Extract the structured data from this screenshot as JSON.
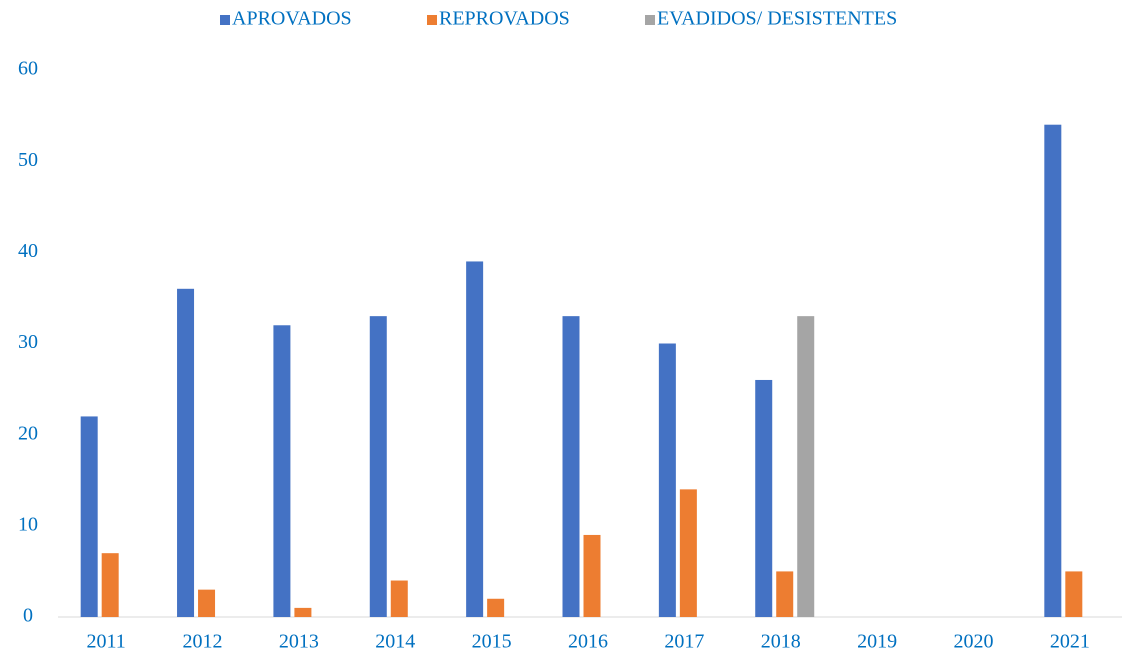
{
  "chart_data": {
    "type": "bar",
    "categories": [
      "2011",
      "2012",
      "2013",
      "2014",
      "2015",
      "2016",
      "2017",
      "2018",
      "2019",
      "2020",
      "2021"
    ],
    "series": [
      {
        "name": "APROVADOS",
        "color": "#4472c4",
        "values": [
          22,
          36,
          32,
          33,
          39,
          33,
          30,
          26,
          null,
          null,
          54
        ]
      },
      {
        "name": "REPROVADOS",
        "color": "#ed7d31",
        "values": [
          7,
          3,
          1,
          4,
          2,
          9,
          14,
          5,
          null,
          null,
          5
        ]
      },
      {
        "name": "EVADIDOS/ DESISTENTES",
        "color": "#a5a5a5",
        "values": [
          0,
          0,
          0,
          0,
          0,
          0,
          0,
          33,
          null,
          null,
          0
        ]
      }
    ],
    "ylim": [
      0,
      60
    ],
    "yticks": [
      0,
      10,
      20,
      30,
      40,
      50,
      60
    ],
    "grid": false,
    "legend": "top"
  }
}
